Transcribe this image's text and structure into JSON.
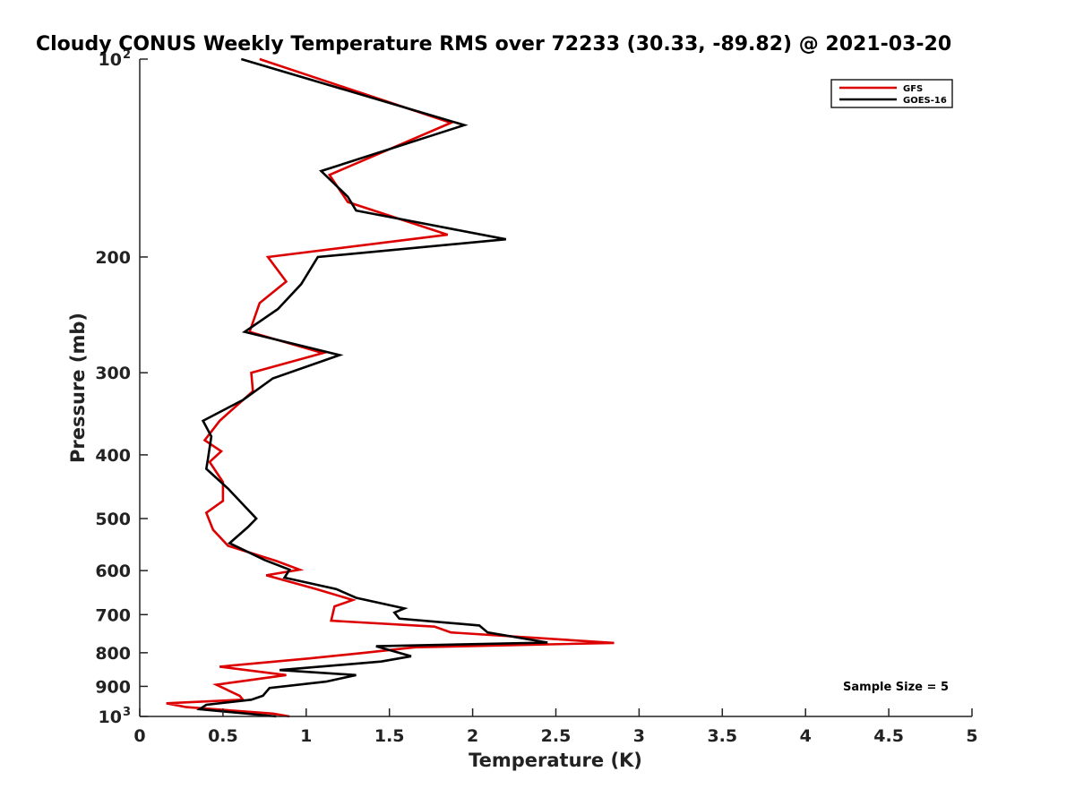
{
  "chart_data": {
    "type": "line",
    "title": "Cloudy CONUS Weekly Temperature RMS over 72233 (30.33, -89.82) @ 2021-03-20",
    "xlabel": "Temperature (K)",
    "ylabel": "Pressure (mb)",
    "xlim": [
      0,
      5
    ],
    "ylim": [
      100,
      1000
    ],
    "yscale": "log",
    "y_reversed": true,
    "x_ticks": [
      {
        "value": 0,
        "label": "0"
      },
      {
        "value": 0.5,
        "label": "0.5"
      },
      {
        "value": 1,
        "label": "1"
      },
      {
        "value": 1.5,
        "label": "1.5"
      },
      {
        "value": 2,
        "label": "2"
      },
      {
        "value": 2.5,
        "label": "2.5"
      },
      {
        "value": 3,
        "label": "3"
      },
      {
        "value": 3.5,
        "label": "3.5"
      },
      {
        "value": 4,
        "label": "4"
      },
      {
        "value": 4.5,
        "label": "4.5"
      },
      {
        "value": 5,
        "label": "5"
      }
    ],
    "y_ticks": [
      {
        "value": 100,
        "label": "10",
        "exp": "2"
      },
      {
        "value": 200,
        "label": "200"
      },
      {
        "value": 300,
        "label": "300"
      },
      {
        "value": 400,
        "label": "400"
      },
      {
        "value": 500,
        "label": "500"
      },
      {
        "value": 600,
        "label": "600"
      },
      {
        "value": 700,
        "label": "700"
      },
      {
        "value": 800,
        "label": "800"
      },
      {
        "value": 900,
        "label": "900"
      },
      {
        "value": 1000,
        "label": "10",
        "exp": "3"
      }
    ],
    "grid": false,
    "legend_position": "top-right",
    "annotation": "Sample Size = 5",
    "series": [
      {
        "name": "GFS",
        "color": "#dd0000",
        "points": [
          [
            0.72,
            100
          ],
          [
            1.87,
            125
          ],
          [
            1.14,
            150
          ],
          [
            1.25,
            165
          ],
          [
            1.85,
            185
          ],
          [
            0.77,
            200
          ],
          [
            0.88,
            218
          ],
          [
            0.72,
            235
          ],
          [
            0.66,
            260
          ],
          [
            1.1,
            280
          ],
          [
            0.67,
            300
          ],
          [
            0.68,
            320
          ],
          [
            0.48,
            355
          ],
          [
            0.39,
            380
          ],
          [
            0.49,
            395
          ],
          [
            0.42,
            410
          ],
          [
            0.5,
            440
          ],
          [
            0.5,
            470
          ],
          [
            0.4,
            490
          ],
          [
            0.44,
            520
          ],
          [
            0.53,
            550
          ],
          [
            0.82,
            580
          ],
          [
            0.96,
            598
          ],
          [
            0.76,
            610
          ],
          [
            1.06,
            640
          ],
          [
            1.28,
            665
          ],
          [
            1.17,
            680
          ],
          [
            1.15,
            715
          ],
          [
            1.77,
            730
          ],
          [
            1.87,
            745
          ],
          [
            2.85,
            773
          ],
          [
            1.65,
            785
          ],
          [
            1.35,
            800
          ],
          [
            1.02,
            816
          ],
          [
            0.48,
            840
          ],
          [
            0.88,
            865
          ],
          [
            0.46,
            895
          ],
          [
            0.6,
            930
          ],
          [
            0.62,
            943
          ],
          [
            0.16,
            955
          ],
          [
            0.28,
            968
          ],
          [
            0.8,
            990
          ],
          [
            0.9,
            1000
          ]
        ]
      },
      {
        "name": "GOES-16",
        "color": "#000000",
        "points": [
          [
            0.61,
            100
          ],
          [
            1.95,
            126
          ],
          [
            1.09,
            148
          ],
          [
            1.25,
            162
          ],
          [
            1.3,
            170
          ],
          [
            2.2,
            188
          ],
          [
            1.07,
            200
          ],
          [
            0.97,
            220
          ],
          [
            0.83,
            240
          ],
          [
            0.63,
            260
          ],
          [
            1.2,
            282
          ],
          [
            0.8,
            306
          ],
          [
            0.62,
            330
          ],
          [
            0.38,
            355
          ],
          [
            0.43,
            375
          ],
          [
            0.41,
            405
          ],
          [
            0.4,
            420
          ],
          [
            0.53,
            450
          ],
          [
            0.7,
            500
          ],
          [
            0.65,
            515
          ],
          [
            0.54,
            545
          ],
          [
            0.75,
            578
          ],
          [
            0.9,
            598
          ],
          [
            0.87,
            615
          ],
          [
            1.18,
            640
          ],
          [
            1.3,
            660
          ],
          [
            1.59,
            685
          ],
          [
            1.53,
            695
          ],
          [
            1.56,
            710
          ],
          [
            2.04,
            727
          ],
          [
            2.09,
            745
          ],
          [
            2.45,
            772
          ],
          [
            1.42,
            782
          ],
          [
            1.63,
            810
          ],
          [
            1.45,
            825
          ],
          [
            0.84,
            850
          ],
          [
            1.3,
            865
          ],
          [
            1.12,
            885
          ],
          [
            0.78,
            905
          ],
          [
            0.74,
            930
          ],
          [
            0.67,
            943
          ],
          [
            0.4,
            960
          ],
          [
            0.36,
            975
          ],
          [
            0.82,
            1000
          ]
        ]
      }
    ]
  }
}
